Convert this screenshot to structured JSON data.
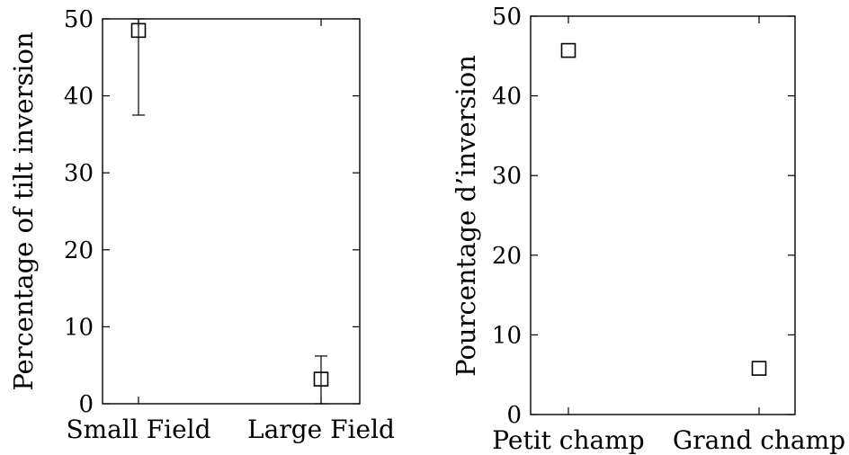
{
  "chart_data": [
    {
      "type": "scatter",
      "categories": [
        "Small Field",
        "Large Field"
      ],
      "values": [
        48.5,
        3.2
      ],
      "error_low": [
        37.5,
        0.0
      ],
      "error_high": [
        50.0,
        6.2
      ],
      "ylabel": "Percentage of tilt inversion",
      "ylim": [
        0,
        50
      ],
      "yticks": [
        0,
        10,
        20,
        30,
        40,
        50
      ],
      "marker": "square",
      "grid": false
    },
    {
      "type": "scatter",
      "categories": [
        "Petit champ",
        "Grand champ"
      ],
      "values": [
        45.7,
        5.8
      ],
      "ylabel": "Pourcentage d’inversion",
      "ylim": [
        0,
        50
      ],
      "yticks": [
        0,
        10,
        20,
        30,
        40,
        50
      ],
      "marker": "square",
      "grid": false
    }
  ]
}
